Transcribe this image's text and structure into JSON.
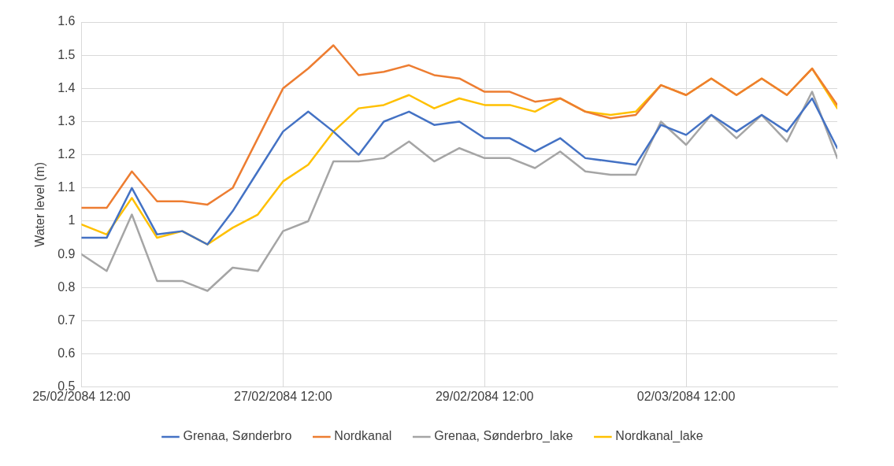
{
  "chart_data": {
    "type": "line",
    "ylabel": "Water level (m)",
    "x": [
      "2084-02-25T12:00",
      "2084-02-25T18:00",
      "2084-02-26T00:00",
      "2084-02-26T06:00",
      "2084-02-26T12:00",
      "2084-02-26T18:00",
      "2084-02-27T00:00",
      "2084-02-27T06:00",
      "2084-02-27T12:00",
      "2084-02-27T18:00",
      "2084-02-28T00:00",
      "2084-02-28T06:00",
      "2084-02-28T12:00",
      "2084-02-28T18:00",
      "2084-02-29T00:00",
      "2084-02-29T06:00",
      "2084-02-29T12:00",
      "2084-02-29T18:00",
      "2084-03-01T00:00",
      "2084-03-01T06:00",
      "2084-03-01T12:00",
      "2084-03-01T18:00",
      "2084-03-02T00:00",
      "2084-03-02T06:00",
      "2084-03-02T12:00",
      "2084-03-02T18:00",
      "2084-03-03T00:00",
      "2084-03-03T06:00",
      "2084-03-03T12:00",
      "2084-03-03T18:00",
      "2084-03-04T00:00"
    ],
    "series": [
      {
        "name": "Grenaa, Sønderbro",
        "color": "#4472c4",
        "values": [
          0.95,
          0.95,
          1.1,
          0.96,
          0.97,
          0.93,
          1.03,
          1.15,
          1.27,
          1.33,
          1.27,
          1.2,
          1.3,
          1.33,
          1.29,
          1.3,
          1.25,
          1.25,
          1.21,
          1.25,
          1.19,
          1.18,
          1.17,
          1.29,
          1.26,
          1.32,
          1.27,
          1.32,
          1.27,
          1.37,
          1.22
        ]
      },
      {
        "name": "Nordkanal",
        "color": "#ed7d31",
        "values": [
          1.04,
          1.04,
          1.15,
          1.06,
          1.06,
          1.05,
          1.1,
          1.25,
          1.4,
          1.46,
          1.53,
          1.44,
          1.45,
          1.47,
          1.44,
          1.43,
          1.39,
          1.39,
          1.36,
          1.37,
          1.33,
          1.31,
          1.32,
          1.41,
          1.38,
          1.43,
          1.38,
          1.43,
          1.38,
          1.46,
          1.35
        ]
      },
      {
        "name": "Grenaa, Sønderbro_lake",
        "color": "#a5a5a5",
        "values": [
          0.9,
          0.85,
          1.02,
          0.82,
          0.82,
          0.79,
          0.86,
          0.85,
          0.97,
          1.0,
          1.18,
          1.18,
          1.19,
          1.24,
          1.18,
          1.22,
          1.19,
          1.19,
          1.16,
          1.21,
          1.15,
          1.14,
          1.14,
          1.3,
          1.23,
          1.32,
          1.25,
          1.32,
          1.24,
          1.39,
          1.19
        ]
      },
      {
        "name": "Nordkanal_lake",
        "color": "#ffc000",
        "values": [
          0.99,
          0.96,
          1.07,
          0.95,
          0.97,
          0.93,
          0.98,
          1.02,
          1.12,
          1.17,
          1.27,
          1.34,
          1.35,
          1.38,
          1.34,
          1.37,
          1.35,
          1.35,
          1.33,
          1.37,
          1.33,
          1.32,
          1.33,
          1.41,
          1.38,
          1.43,
          1.38,
          1.43,
          1.38,
          1.46,
          1.34
        ]
      }
    ],
    "xlim": [
      "2084-02-25T12:00",
      "2084-03-04T00:00"
    ],
    "xticks": [
      {
        "value": "2084-02-25T12:00",
        "label": "25/02/2084 12:00"
      },
      {
        "value": "2084-02-27T12:00",
        "label": "27/02/2084 12:00"
      },
      {
        "value": "2084-02-29T12:00",
        "label": "29/02/2084 12:00"
      },
      {
        "value": "2084-03-02T12:00",
        "label": "02/03/2084 12:00"
      }
    ],
    "ylim": [
      0.5,
      1.6
    ],
    "yticks": [
      0.5,
      0.6,
      0.7,
      0.8,
      0.9,
      1,
      1.1,
      1.2,
      1.3,
      1.4,
      1.5,
      1.6
    ],
    "grid": true,
    "legend": "bottom",
    "line_style": "solid",
    "marker": "none"
  }
}
